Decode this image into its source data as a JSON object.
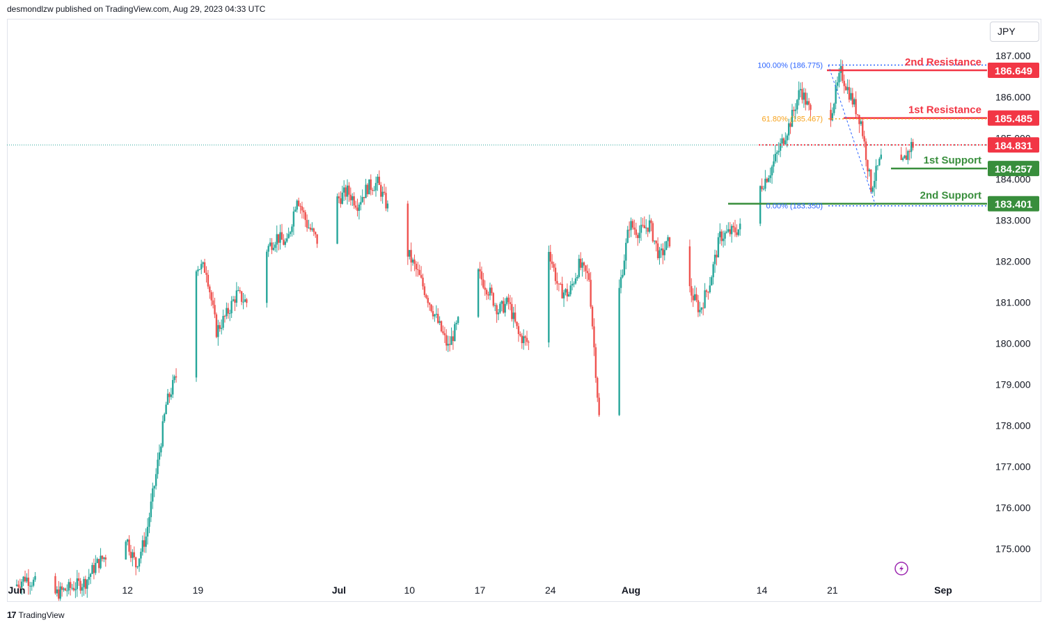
{
  "header": {
    "attribution": "desmondlzw published on TradingView.com, Aug 29, 2023 04:33 UTC"
  },
  "currency_button": {
    "label": "JPY"
  },
  "footer": {
    "brand": "TradingView",
    "logo_icon": "tradingview-logo-icon"
  },
  "colors": {
    "up": "#26a69a",
    "down": "#ef5350",
    "resistance": "#f23645",
    "support": "#388e3c",
    "fib_blue": "#2962ff",
    "fib_orange": "#f7a21b",
    "text": "#131722"
  },
  "chart_data": {
    "type": "candlestick",
    "symbol_currency": "JPY",
    "ylim": [
      174.3,
      187.8
    ],
    "y_ticks": [
      "187.000",
      "186.000",
      "185.000",
      "184.000",
      "183.000",
      "182.000",
      "181.000",
      "180.000",
      "179.000",
      "178.000",
      "177.000",
      "176.000",
      "175.000"
    ],
    "x_ticks": [
      {
        "label": "Jun",
        "date": "2023-06-01"
      },
      {
        "label": "12",
        "date": "2023-06-12"
      },
      {
        "label": "19",
        "date": "2023-06-19"
      },
      {
        "label": "Jul",
        "date": "2023-07-03"
      },
      {
        "label": "10",
        "date": "2023-07-10"
      },
      {
        "label": "17",
        "date": "2023-07-17"
      },
      {
        "label": "24",
        "date": "2023-07-24"
      },
      {
        "label": "Aug",
        "date": "2023-08-01"
      },
      {
        "label": "14",
        "date": "2023-08-14"
      },
      {
        "label": "21",
        "date": "2023-08-21"
      },
      {
        "label": "Sep",
        "date": "2023-09-01"
      }
    ],
    "levels": [
      {
        "name": "2nd Resistance",
        "value": "186.649",
        "kind": "resistance"
      },
      {
        "name": "1st Resistance",
        "value": "185.485",
        "kind": "resistance"
      },
      {
        "name": "1st Support",
        "value": "184.257",
        "kind": "support"
      },
      {
        "name": "2nd Support",
        "value": "183.401",
        "kind": "support"
      }
    ],
    "current_price": "184.831",
    "fibonacci": [
      {
        "label": "100.00% (186.775)",
        "value": 186.775
      },
      {
        "label": "61.80% (185.467)",
        "value": 185.467
      },
      {
        "label": "0.00% (183.350)",
        "value": 183.35
      }
    ],
    "price_path": [
      [
        "2023-06-01",
        174.1
      ],
      [
        "2023-06-02",
        174.3
      ],
      [
        "2023-06-05",
        173.9
      ],
      [
        "2023-06-06",
        174.0
      ],
      [
        "2023-06-08",
        174.2
      ],
      [
        "2023-06-09",
        174.6
      ],
      [
        "2023-06-12",
        175.3
      ],
      [
        "2023-06-13",
        174.6
      ],
      [
        "2023-06-14",
        175.3
      ],
      [
        "2023-06-15",
        176.8
      ],
      [
        "2023-06-16",
        178.5
      ],
      [
        "2023-06-17",
        179.2
      ],
      [
        "2023-06-18",
        181.0
      ],
      [
        "2023-06-19",
        181.9
      ],
      [
        "2023-06-20",
        181.8
      ],
      [
        "2023-06-21",
        180.3
      ],
      [
        "2023-06-22",
        180.7
      ],
      [
        "2023-06-23",
        181.2
      ],
      [
        "2023-06-24",
        181.0
      ],
      [
        "2023-06-26",
        182.3
      ],
      [
        "2023-06-27",
        182.6
      ],
      [
        "2023-06-28",
        182.4
      ],
      [
        "2023-06-29",
        183.6
      ],
      [
        "2023-06-30",
        182.9
      ],
      [
        "2023-07-01",
        182.5
      ],
      [
        "2023-07-02",
        182.8
      ],
      [
        "2023-07-03",
        183.5
      ],
      [
        "2023-07-04",
        183.7
      ],
      [
        "2023-07-05",
        183.4
      ],
      [
        "2023-07-06",
        183.8
      ],
      [
        "2023-07-07",
        183.9
      ],
      [
        "2023-07-08",
        183.3
      ],
      [
        "2023-07-09",
        182.7
      ],
      [
        "2023-07-10",
        182.2
      ],
      [
        "2023-07-11",
        181.7
      ],
      [
        "2023-07-12",
        181.1
      ],
      [
        "2023-07-13",
        180.5
      ],
      [
        "2023-07-14",
        179.9
      ],
      [
        "2023-07-15",
        180.5
      ],
      [
        "2023-07-16",
        181.3
      ],
      [
        "2023-07-17",
        181.7
      ],
      [
        "2023-07-18",
        181.3
      ],
      [
        "2023-07-19",
        180.8
      ],
      [
        "2023-07-20",
        181.0
      ],
      [
        "2023-07-21",
        180.2
      ],
      [
        "2023-07-22",
        180.0
      ],
      [
        "2023-07-23",
        180.4
      ],
      [
        "2023-07-24",
        182.3
      ],
      [
        "2023-07-25",
        181.3
      ],
      [
        "2023-07-26",
        181.2
      ],
      [
        "2023-07-27",
        181.9
      ],
      [
        "2023-07-28",
        181.6
      ],
      [
        "2023-07-29",
        178.2
      ],
      [
        "2023-07-30",
        177.3
      ],
      [
        "2023-07-31",
        181.3
      ],
      [
        "2023-08-01",
        182.9
      ],
      [
        "2023-08-02",
        182.7
      ],
      [
        "2023-08-03",
        182.9
      ],
      [
        "2023-08-04",
        182.1
      ],
      [
        "2023-08-05",
        182.5
      ],
      [
        "2023-08-06",
        181.0
      ],
      [
        "2023-08-07",
        181.3
      ],
      [
        "2023-08-08",
        180.8
      ],
      [
        "2023-08-09",
        181.5
      ],
      [
        "2023-08-10",
        182.6
      ],
      [
        "2023-08-11",
        182.7
      ],
      [
        "2023-08-12",
        182.8
      ],
      [
        "2023-08-13",
        183.8
      ],
      [
        "2023-08-14",
        183.8
      ],
      [
        "2023-08-15",
        184.2
      ],
      [
        "2023-08-16",
        184.8
      ],
      [
        "2023-08-17",
        185.4
      ],
      [
        "2023-08-18",
        186.2
      ],
      [
        "2023-08-19",
        185.6
      ],
      [
        "2023-08-20",
        184.9
      ],
      [
        "2023-08-21",
        185.6
      ],
      [
        "2023-08-22",
        186.6
      ],
      [
        "2023-08-23",
        186.0
      ],
      [
        "2023-08-24",
        185.4
      ],
      [
        "2023-08-25",
        183.8
      ],
      [
        "2023-08-26",
        184.5
      ],
      [
        "2023-08-27",
        183.6
      ],
      [
        "2023-08-28",
        184.3
      ],
      [
        "2023-08-29",
        184.83
      ]
    ]
  }
}
